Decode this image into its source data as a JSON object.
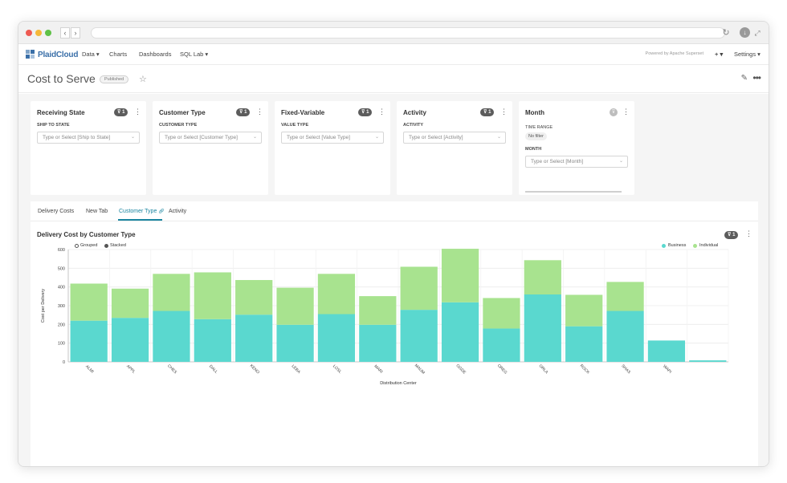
{
  "app": {
    "brand": "PlaidCloud",
    "nav": [
      "Data ▾",
      "Charts",
      "Dashboards",
      "SQL Lab ▾"
    ],
    "powered_by": "Powered by Apache Superset",
    "plus_menu": "+ ▾",
    "settings": "Settings ▾"
  },
  "dashboard": {
    "title": "Cost to Serve",
    "status": "Published"
  },
  "filters": [
    {
      "title": "Receiving State",
      "count": "1",
      "label": "SHIP TO STATE",
      "placeholder": "Type or Select [Ship to State]"
    },
    {
      "title": "Customer Type",
      "count": "1",
      "label": "CUSTOMER TYPE",
      "placeholder": "Type or Select [Customer Type]"
    },
    {
      "title": "Fixed-Variable",
      "count": "1",
      "label": "VALUE TYPE",
      "placeholder": "Type or Select [Value Type]"
    },
    {
      "title": "Activity",
      "count": "1",
      "label": "ACTIVITY",
      "placeholder": "Type or Select [Activity]"
    }
  ],
  "month_filter": {
    "title": "Month",
    "time_range_label": "TIME RANGE",
    "time_range_value": "No filter",
    "month_label": "MONTH",
    "placeholder": "Type or Select [Month]"
  },
  "tabs": [
    "Delivery Costs",
    "New Tab",
    "Customer Type",
    "Activity"
  ],
  "active_tab": "Customer Type",
  "chart": {
    "count": "1",
    "grouped_label": "Grouped",
    "stacked_label": "Stacked",
    "colors": {
      "Business": "#5ad8cf",
      "Individual": "#a8e38f"
    }
  },
  "chart_data": {
    "type": "bar",
    "stacked": true,
    "title": "Delivery Cost by Customer Type",
    "xlabel": "Distribution Center",
    "ylabel": "Cost per Delivery",
    "ylim": [
      0,
      600
    ],
    "yticks": [
      0,
      100,
      200,
      300,
      400,
      500,
      600
    ],
    "grid": true,
    "legend_position": "top-right",
    "categories": [
      "ALMI",
      "APPL",
      "CHES",
      "DALL",
      "KENO",
      "LEBA",
      "LOSL",
      "MARI",
      "MAUM",
      "OGDE",
      "OREG",
      "ORLA",
      "ROCK",
      "SHAS",
      "WAPI",
      ""
    ],
    "series": [
      {
        "name": "Business",
        "values": [
          220,
          235,
          272,
          228,
          252,
          198,
          255,
          198,
          278,
          318,
          178,
          360,
          190,
          272,
          114,
          8
        ]
      },
      {
        "name": "Individual",
        "values": [
          198,
          156,
          198,
          250,
          185,
          198,
          215,
          153,
          230,
          286,
          163,
          183,
          168,
          155,
          0,
          0
        ]
      }
    ]
  }
}
